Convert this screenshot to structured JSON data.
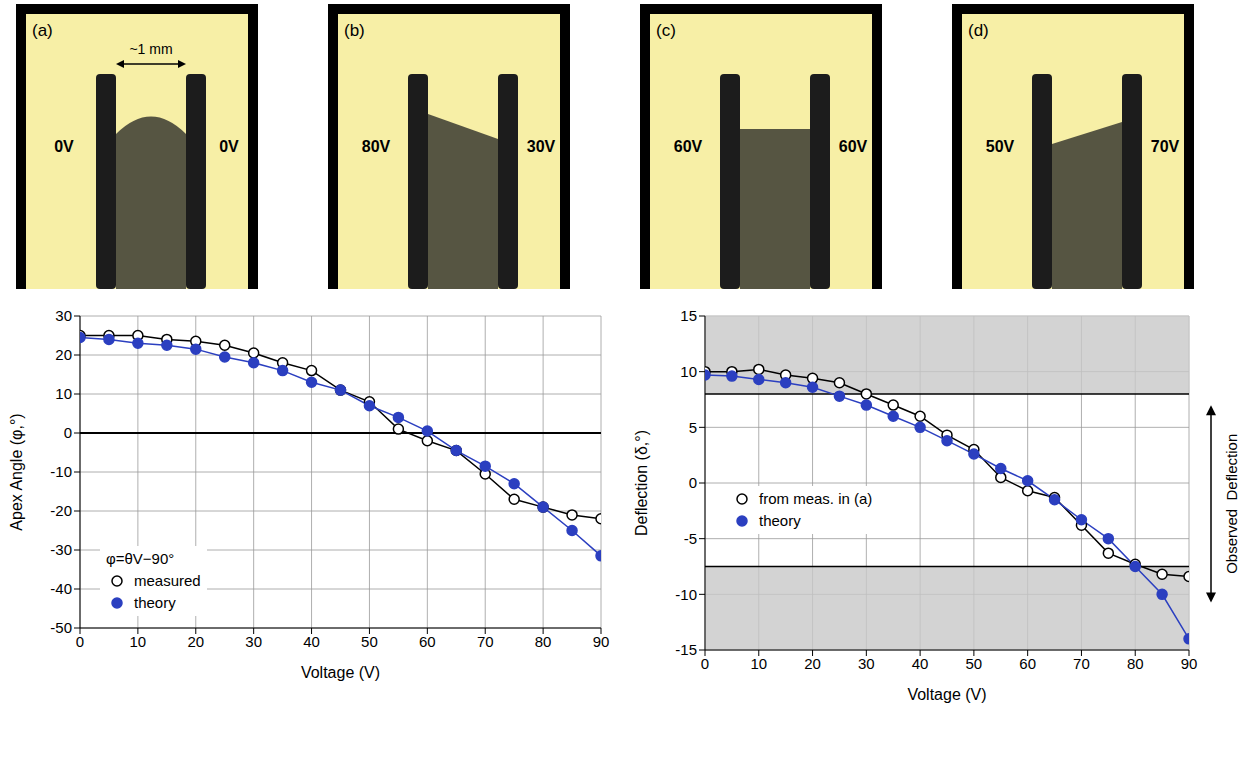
{
  "panels": [
    {
      "letter": "(a)",
      "left_voltage": "0V",
      "right_voltage": "0V",
      "scale": "~1 mm"
    },
    {
      "letter": "(b)",
      "left_voltage": "80V",
      "right_voltage": "30V"
    },
    {
      "letter": "(c)",
      "left_voltage": "60V",
      "right_voltage": "60V"
    },
    {
      "letter": "(d)",
      "left_voltage": "50V",
      "right_voltage": "70V"
    }
  ],
  "chart_data": [
    {
      "type": "line",
      "x_label": "Voltage (V)",
      "y_label": "Apex Angle (φ,°)",
      "annotation": "φ=θV−90°",
      "x": [
        0,
        5,
        10,
        15,
        20,
        25,
        30,
        35,
        40,
        45,
        50,
        55,
        60,
        65,
        70,
        75,
        80,
        85,
        90
      ],
      "xlim": [
        0,
        90
      ],
      "xticks": [
        0,
        10,
        20,
        30,
        40,
        50,
        60,
        70,
        80,
        90
      ],
      "ylim": [
        -50,
        30
      ],
      "yticks": [
        -50,
        -40,
        -30,
        -20,
        -10,
        0,
        10,
        20,
        30
      ],
      "grid": true,
      "legend": "lower left",
      "hlines": [
        0
      ],
      "series": [
        {
          "name": "measured",
          "color": "#000000",
          "marker": "open_circle",
          "values": [
            25,
            25,
            25,
            24,
            23.5,
            22.5,
            20.5,
            18,
            16,
            11,
            8,
            1,
            -2,
            -4.5,
            -10.5,
            -17,
            -19,
            -21,
            -22
          ]
        },
        {
          "name": "theory",
          "color": "#2b3fc0",
          "marker": "filled_circle",
          "values": [
            24.5,
            24,
            23,
            22.5,
            21.5,
            19.5,
            18,
            16,
            13,
            11,
            7,
            4,
            0.5,
            -4.5,
            -8.5,
            -13,
            -19,
            -25,
            -31.5
          ]
        }
      ]
    },
    {
      "type": "line",
      "x_label": "Voltage (V)",
      "y_label": "Deflection (δ,°)",
      "band_label": "Observed  Deflection",
      "observed_deflection": [
        -7.5,
        8
      ],
      "x": [
        0,
        5,
        10,
        15,
        20,
        25,
        30,
        35,
        40,
        45,
        50,
        55,
        60,
        65,
        70,
        75,
        80,
        85,
        90
      ],
      "xlim": [
        0,
        90
      ],
      "xticks": [
        0,
        10,
        20,
        30,
        40,
        50,
        60,
        70,
        80,
        90
      ],
      "ylim": [
        -15,
        15
      ],
      "yticks": [
        -15,
        -10,
        -5,
        0,
        5,
        10,
        15
      ],
      "grid": true,
      "legend": "center left",
      "series": [
        {
          "name": "from meas. in (a)",
          "color": "#000000",
          "marker": "open_circle",
          "values": [
            10,
            10,
            10.2,
            9.7,
            9.4,
            9,
            8,
            7,
            6,
            4.3,
            3,
            0.5,
            -0.7,
            -1.3,
            -3.8,
            -6.3,
            -7.3,
            -8.2,
            -8.4
          ]
        },
        {
          "name": "theory",
          "color": "#2b3fc0",
          "marker": "filled_circle",
          "values": [
            9.7,
            9.6,
            9.3,
            9,
            8.6,
            7.8,
            7,
            6,
            5,
            3.8,
            2.6,
            1.3,
            0.2,
            -1.5,
            -3.3,
            -5,
            -7.5,
            -10,
            -14
          ]
        }
      ]
    }
  ]
}
